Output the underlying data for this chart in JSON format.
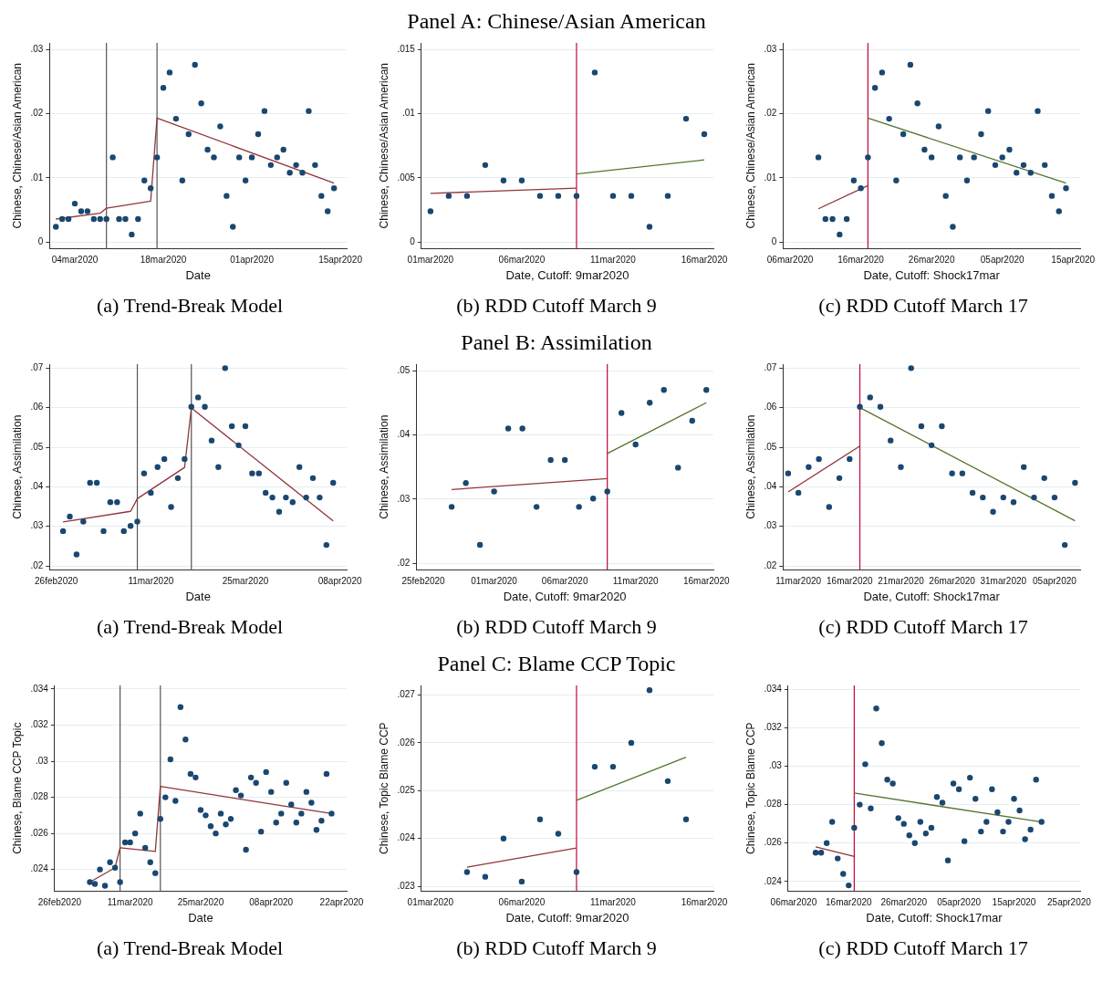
{
  "chart_data": [
    {
      "type": "scatter",
      "xlabel": "Date",
      "ylabel": "Chinese, Chinese/Asian American",
      "annotations": [
        "(a) Trend-Break Model"
      ],
      "grid": "y",
      "marker": "circle",
      "xlim": [
        "2020-02-29",
        "2020-04-16"
      ],
      "xticks": [
        {
          "value": "2020-03-04",
          "label": "04mar2020"
        },
        {
          "value": "2020-03-18",
          "label": "18mar2020"
        },
        {
          "value": "2020-04-01",
          "label": "01apr2020"
        },
        {
          "value": "2020-04-15",
          "label": "15apr2020"
        }
      ],
      "ylim": [
        -0.001,
        0.031
      ],
      "yticks": [
        {
          "value": 0,
          "label": "0"
        },
        {
          "value": 0.01,
          "label": ".01"
        },
        {
          "value": 0.02,
          "label": ".02"
        },
        {
          "value": 0.03,
          "label": ".03"
        }
      ],
      "ref_lines": [
        {
          "axis": "x",
          "value": "2020-03-09",
          "color": "#555555"
        },
        {
          "axis": "x",
          "value": "2020-03-17",
          "color": "#555555"
        }
      ],
      "series": [
        {
          "type": "scatter",
          "color": "#1a476f",
          "x": [
            "2020-03-01",
            "2020-03-02",
            "2020-03-03",
            "2020-03-04",
            "2020-03-05",
            "2020-03-06",
            "2020-03-07",
            "2020-03-08",
            "2020-03-09",
            "2020-03-10",
            "2020-03-11",
            "2020-03-12",
            "2020-03-13",
            "2020-03-14",
            "2020-03-15",
            "2020-03-16",
            "2020-03-17",
            "2020-03-18",
            "2020-03-19",
            "2020-03-20",
            "2020-03-21",
            "2020-03-22",
            "2020-03-23",
            "2020-03-24",
            "2020-03-25",
            "2020-03-26",
            "2020-03-27",
            "2020-03-28",
            "2020-03-29",
            "2020-03-30",
            "2020-03-31",
            "2020-04-01",
            "2020-04-02",
            "2020-04-03",
            "2020-04-04",
            "2020-04-05",
            "2020-04-06",
            "2020-04-07",
            "2020-04-08",
            "2020-04-09",
            "2020-04-10",
            "2020-04-11",
            "2020-04-12",
            "2020-04-13",
            "2020-04-14"
          ],
          "values": [
            0.0024,
            0.0036,
            0.0036,
            0.006,
            0.0048,
            0.0048,
            0.0036,
            0.0036,
            0.0036,
            0.0132,
            0.0036,
            0.0036,
            0.0012,
            0.0036,
            0.0096,
            0.0084,
            0.0132,
            0.024,
            0.0264,
            0.0192,
            0.0096,
            0.0168,
            0.0276,
            0.0216,
            0.0144,
            0.0132,
            0.018,
            0.0072,
            0.0024,
            0.0132,
            0.0096,
            0.0132,
            0.0168,
            0.0204,
            0.012,
            0.0132,
            0.0144,
            0.0108,
            0.012,
            0.0108,
            0.0204,
            0.012,
            0.0072,
            0.0048,
            0.0084
          ]
        },
        {
          "type": "line",
          "marker": "none",
          "color": "#90353b",
          "x": [
            "2020-03-01",
            "2020-03-08",
            "2020-03-09",
            "2020-03-16",
            "2020-03-17",
            "2020-04-14"
          ],
          "values": [
            0.0036,
            0.0045,
            0.0053,
            0.0064,
            0.0193,
            0.0092
          ]
        }
      ]
    },
    {
      "type": "scatter",
      "title": "Panel A: Chinese/Asian American",
      "xlabel": "Date, Cutoff: 9mar2020",
      "ylabel": "Chinese, Chinese/Asian American",
      "annotations": [
        "(b) RDD Cutoff March 9"
      ],
      "grid": "y",
      "marker": "circle",
      "xlim": [
        "2020-02-29T12:00",
        "2020-03-16T12:00"
      ],
      "xticks": [
        {
          "value": "2020-03-01",
          "label": "01mar2020"
        },
        {
          "value": "2020-03-06",
          "label": "06mar2020"
        },
        {
          "value": "2020-03-11",
          "label": "11mar2020"
        },
        {
          "value": "2020-03-16",
          "label": "16mar2020"
        }
      ],
      "ylim": [
        -0.0005,
        0.0155
      ],
      "yticks": [
        {
          "value": 0,
          "label": "0"
        },
        {
          "value": 0.005,
          "label": ".005"
        },
        {
          "value": 0.01,
          "label": ".01"
        },
        {
          "value": 0.015,
          "label": ".015"
        }
      ],
      "ref_lines": [
        {
          "axis": "x",
          "value": "2020-03-09",
          "color": "#c10534"
        }
      ],
      "series": [
        {
          "type": "scatter",
          "color": "#1a476f",
          "x": [
            "2020-03-01",
            "2020-03-02",
            "2020-03-03",
            "2020-03-04",
            "2020-03-05",
            "2020-03-06",
            "2020-03-07",
            "2020-03-08",
            "2020-03-09",
            "2020-03-10",
            "2020-03-11",
            "2020-03-12",
            "2020-03-13",
            "2020-03-14",
            "2020-03-15",
            "2020-03-16"
          ],
          "values": [
            0.0024,
            0.0036,
            0.0036,
            0.006,
            0.0048,
            0.0048,
            0.0036,
            0.0036,
            0.0036,
            0.0132,
            0.0036,
            0.0036,
            0.0012,
            0.0036,
            0.0096,
            0.0084
          ]
        },
        {
          "type": "line",
          "marker": "none",
          "color": "#90353b",
          "x": [
            "2020-03-01",
            "2020-03-09"
          ],
          "values": [
            0.0038,
            0.0042
          ]
        },
        {
          "type": "line",
          "marker": "none",
          "color": "#55752f",
          "x": [
            "2020-03-09",
            "2020-03-16"
          ],
          "values": [
            0.0053,
            0.0064
          ]
        }
      ]
    },
    {
      "type": "scatter",
      "xlabel": "Date, Cutoff: Shock17mar",
      "ylabel": "Chinese, Chinese/Asian American",
      "annotations": [
        "(c) RDD Cutoff March 17"
      ],
      "grid": "y",
      "marker": "circle",
      "xlim": [
        "2020-03-05",
        "2020-04-16"
      ],
      "xticks": [
        {
          "value": "2020-03-06",
          "label": "06mar2020"
        },
        {
          "value": "2020-03-16",
          "label": "16mar2020"
        },
        {
          "value": "2020-03-26",
          "label": "26mar2020"
        },
        {
          "value": "2020-04-05",
          "label": "05apr2020"
        },
        {
          "value": "2020-04-15",
          "label": "15apr2020"
        }
      ],
      "ylim": [
        -0.001,
        0.031
      ],
      "yticks": [
        {
          "value": 0,
          "label": "0"
        },
        {
          "value": 0.01,
          "label": ".01"
        },
        {
          "value": 0.02,
          "label": ".02"
        },
        {
          "value": 0.03,
          "label": ".03"
        }
      ],
      "ref_lines": [
        {
          "axis": "x",
          "value": "2020-03-17",
          "color": "#c10534"
        }
      ],
      "series": [
        {
          "type": "scatter",
          "color": "#1a476f",
          "x": [
            "2020-03-10",
            "2020-03-11",
            "2020-03-12",
            "2020-03-13",
            "2020-03-14",
            "2020-03-15",
            "2020-03-16",
            "2020-03-17",
            "2020-03-18",
            "2020-03-19",
            "2020-03-20",
            "2020-03-21",
            "2020-03-22",
            "2020-03-23",
            "2020-03-24",
            "2020-03-25",
            "2020-03-26",
            "2020-03-27",
            "2020-03-28",
            "2020-03-29",
            "2020-03-30",
            "2020-03-31",
            "2020-04-01",
            "2020-04-02",
            "2020-04-03",
            "2020-04-04",
            "2020-04-05",
            "2020-04-06",
            "2020-04-07",
            "2020-04-08",
            "2020-04-09",
            "2020-04-10",
            "2020-04-11",
            "2020-04-12",
            "2020-04-13",
            "2020-04-14"
          ],
          "values": [
            0.0132,
            0.0036,
            0.0036,
            0.0012,
            0.0036,
            0.0096,
            0.0084,
            0.0132,
            0.024,
            0.0264,
            0.0192,
            0.0096,
            0.0168,
            0.0276,
            0.0216,
            0.0144,
            0.0132,
            0.018,
            0.0072,
            0.0024,
            0.0132,
            0.0096,
            0.0132,
            0.0168,
            0.0204,
            0.012,
            0.0132,
            0.0144,
            0.0108,
            0.012,
            0.0108,
            0.0204,
            0.012,
            0.0072,
            0.0048,
            0.0084
          ]
        },
        {
          "type": "line",
          "marker": "none",
          "color": "#90353b",
          "x": [
            "2020-03-10",
            "2020-03-17"
          ],
          "values": [
            0.0052,
            0.0088
          ]
        },
        {
          "type": "line",
          "marker": "none",
          "color": "#55752f",
          "x": [
            "2020-03-17",
            "2020-04-14"
          ],
          "values": [
            0.0193,
            0.0092
          ]
        }
      ]
    },
    {
      "type": "scatter",
      "xlabel": "Date",
      "ylabel": "Chinese, Assimilation",
      "annotations": [
        "(a) Trend-Break Model"
      ],
      "grid": "y",
      "marker": "circle",
      "xlim": [
        "2020-02-25",
        "2020-04-09"
      ],
      "xticks": [
        {
          "value": "2020-02-26",
          "label": "26feb2020"
        },
        {
          "value": "2020-03-11",
          "label": "11mar2020"
        },
        {
          "value": "2020-03-25",
          "label": "25mar2020"
        },
        {
          "value": "2020-04-08",
          "label": "08apr2020"
        }
      ],
      "ylim": [
        0.019,
        0.071
      ],
      "yticks": [
        {
          "value": 0.02,
          "label": ".02"
        },
        {
          "value": 0.03,
          "label": ".03"
        },
        {
          "value": 0.04,
          "label": ".04"
        },
        {
          "value": 0.05,
          "label": ".05"
        },
        {
          "value": 0.06,
          "label": ".06"
        },
        {
          "value": 0.07,
          "label": ".07"
        }
      ],
      "ref_lines": [
        {
          "axis": "x",
          "value": "2020-03-09",
          "color": "#555555"
        },
        {
          "axis": "x",
          "value": "2020-03-17",
          "color": "#555555"
        }
      ],
      "series": [
        {
          "type": "scatter",
          "color": "#1a476f",
          "x": [
            "2020-02-27",
            "2020-02-28",
            "2020-02-29",
            "2020-03-01",
            "2020-03-02",
            "2020-03-03",
            "2020-03-04",
            "2020-03-05",
            "2020-03-06",
            "2020-03-07",
            "2020-03-08",
            "2020-03-09",
            "2020-03-10",
            "2020-03-11",
            "2020-03-12",
            "2020-03-13",
            "2020-03-14",
            "2020-03-15",
            "2020-03-16",
            "2020-03-17",
            "2020-03-18",
            "2020-03-19",
            "2020-03-20",
            "2020-03-21",
            "2020-03-22",
            "2020-03-23",
            "2020-03-24",
            "2020-03-25",
            "2020-03-26",
            "2020-03-27",
            "2020-03-28",
            "2020-03-29",
            "2020-03-30",
            "2020-03-31",
            "2020-04-01",
            "2020-04-02",
            "2020-04-03",
            "2020-04-04",
            "2020-04-05",
            "2020-04-06",
            "2020-04-07"
          ],
          "values": [
            0.0288,
            0.0325,
            0.0229,
            0.0312,
            0.041,
            0.041,
            0.0288,
            0.0361,
            0.0361,
            0.0288,
            0.0301,
            0.0312,
            0.0434,
            0.0385,
            0.045,
            0.047,
            0.0349,
            0.0422,
            0.047,
            0.0602,
            0.0626,
            0.0602,
            0.0517,
            0.045,
            0.07,
            0.0553,
            0.0505,
            0.0553,
            0.0434,
            0.0434,
            0.0385,
            0.0373,
            0.0337,
            0.0373,
            0.0361,
            0.045,
            0.0373,
            0.0422,
            0.0373,
            0.0253,
            0.041
          ]
        },
        {
          "type": "line",
          "marker": "none",
          "color": "#90353b",
          "x": [
            "2020-02-27",
            "2020-03-08",
            "2020-03-09",
            "2020-03-16",
            "2020-03-17",
            "2020-04-07"
          ],
          "values": [
            0.0311,
            0.0338,
            0.037,
            0.0449,
            0.0599,
            0.0314
          ]
        }
      ]
    },
    {
      "type": "scatter",
      "title": "Panel B: Assimilation",
      "xlabel": "Date, Cutoff: 9mar2020",
      "ylabel": "Chinese, Assimilation",
      "annotations": [
        "(b) RDD Cutoff March 9"
      ],
      "grid": "y",
      "marker": "circle",
      "xlim": [
        "2020-02-24T12:00",
        "2020-03-16T12:00"
      ],
      "xticks": [
        {
          "value": "2020-02-25",
          "label": "25feb2020"
        },
        {
          "value": "2020-03-01",
          "label": "01mar2020"
        },
        {
          "value": "2020-03-06",
          "label": "06mar2020"
        },
        {
          "value": "2020-03-11",
          "label": "11mar2020"
        },
        {
          "value": "2020-03-16",
          "label": "16mar2020"
        }
      ],
      "ylim": [
        0.019,
        0.051
      ],
      "yticks": [
        {
          "value": 0.02,
          "label": ".02"
        },
        {
          "value": 0.03,
          "label": ".03"
        },
        {
          "value": 0.04,
          "label": ".04"
        },
        {
          "value": 0.05,
          "label": ".05"
        }
      ],
      "ref_lines": [
        {
          "axis": "x",
          "value": "2020-03-09",
          "color": "#c10534"
        }
      ],
      "series": [
        {
          "type": "scatter",
          "color": "#1a476f",
          "x": [
            "2020-02-27",
            "2020-02-28",
            "2020-02-29",
            "2020-03-01",
            "2020-03-02",
            "2020-03-03",
            "2020-03-04",
            "2020-03-05",
            "2020-03-06",
            "2020-03-07",
            "2020-03-08",
            "2020-03-09",
            "2020-03-10",
            "2020-03-11",
            "2020-03-12",
            "2020-03-13",
            "2020-03-14",
            "2020-03-15",
            "2020-03-16"
          ],
          "values": [
            0.0288,
            0.0325,
            0.0229,
            0.0312,
            0.041,
            0.041,
            0.0288,
            0.0361,
            0.0361,
            0.0288,
            0.0301,
            0.0312,
            0.0434,
            0.0385,
            0.045,
            0.047,
            0.0349,
            0.0422,
            0.047
          ]
        },
        {
          "type": "line",
          "marker": "none",
          "color": "#90353b",
          "x": [
            "2020-02-27",
            "2020-03-09"
          ],
          "values": [
            0.0315,
            0.0332
          ]
        },
        {
          "type": "line",
          "marker": "none",
          "color": "#55752f",
          "x": [
            "2020-03-09",
            "2020-03-16"
          ],
          "values": [
            0.0371,
            0.045
          ]
        }
      ]
    },
    {
      "type": "scatter",
      "xlabel": "Date, Cutoff: Shock17mar",
      "ylabel": "Chinese, Assimilation",
      "annotations": [
        "(c) RDD Cutoff March 17"
      ],
      "grid": "y",
      "marker": "circle",
      "xlim": [
        "2020-03-09T12:00",
        "2020-04-07T12:00"
      ],
      "xticks": [
        {
          "value": "2020-03-11",
          "label": "11mar2020"
        },
        {
          "value": "2020-03-16",
          "label": "16mar2020"
        },
        {
          "value": "2020-03-21",
          "label": "21mar2020"
        },
        {
          "value": "2020-03-26",
          "label": "26mar2020"
        },
        {
          "value": "2020-03-31",
          "label": "31mar2020"
        },
        {
          "value": "2020-04-05",
          "label": "05apr2020"
        }
      ],
      "ylim": [
        0.019,
        0.071
      ],
      "yticks": [
        {
          "value": 0.02,
          "label": ".02"
        },
        {
          "value": 0.03,
          "label": ".03"
        },
        {
          "value": 0.04,
          "label": ".04"
        },
        {
          "value": 0.05,
          "label": ".05"
        },
        {
          "value": 0.06,
          "label": ".06"
        },
        {
          "value": 0.07,
          "label": ".07"
        }
      ],
      "ref_lines": [
        {
          "axis": "x",
          "value": "2020-03-17",
          "color": "#c10534"
        }
      ],
      "series": [
        {
          "type": "scatter",
          "color": "#1a476f",
          "x": [
            "2020-03-10",
            "2020-03-11",
            "2020-03-12",
            "2020-03-13",
            "2020-03-14",
            "2020-03-15",
            "2020-03-16",
            "2020-03-17",
            "2020-03-18",
            "2020-03-19",
            "2020-03-20",
            "2020-03-21",
            "2020-03-22",
            "2020-03-23",
            "2020-03-24",
            "2020-03-25",
            "2020-03-26",
            "2020-03-27",
            "2020-03-28",
            "2020-03-29",
            "2020-03-30",
            "2020-03-31",
            "2020-04-01",
            "2020-04-02",
            "2020-04-03",
            "2020-04-04",
            "2020-04-05",
            "2020-04-06",
            "2020-04-07"
          ],
          "values": [
            0.0434,
            0.0385,
            0.045,
            0.047,
            0.0349,
            0.0422,
            0.047,
            0.0602,
            0.0626,
            0.0602,
            0.0517,
            0.045,
            0.07,
            0.0553,
            0.0505,
            0.0553,
            0.0434,
            0.0434,
            0.0385,
            0.0373,
            0.0337,
            0.0373,
            0.0361,
            0.045,
            0.0373,
            0.0422,
            0.0373,
            0.0253,
            0.041
          ]
        },
        {
          "type": "line",
          "marker": "none",
          "color": "#90353b",
          "x": [
            "2020-03-10",
            "2020-03-17"
          ],
          "values": [
            0.0387,
            0.0503
          ]
        },
        {
          "type": "line",
          "marker": "none",
          "color": "#55752f",
          "x": [
            "2020-03-17",
            "2020-04-07"
          ],
          "values": [
            0.06,
            0.0314
          ]
        }
      ]
    },
    {
      "type": "scatter",
      "xlabel": "Date",
      "ylabel": "Chinese, Blame CCP Topic",
      "annotations": [
        "(a) Trend-Break Model"
      ],
      "grid": "y",
      "marker": "circle",
      "xlim": [
        "2020-02-25",
        "2020-04-23"
      ],
      "xticks": [
        {
          "value": "2020-02-26",
          "label": "26feb2020"
        },
        {
          "value": "2020-03-11",
          "label": "11mar2020"
        },
        {
          "value": "2020-03-25",
          "label": "25mar2020"
        },
        {
          "value": "2020-04-08",
          "label": "08apr2020"
        },
        {
          "value": "2020-04-22",
          "label": "22apr2020"
        }
      ],
      "ylim": [
        0.0228,
        0.0342
      ],
      "yticks": [
        {
          "value": 0.024,
          "label": ".024"
        },
        {
          "value": 0.026,
          "label": ".026"
        },
        {
          "value": 0.028,
          "label": ".028"
        },
        {
          "value": 0.03,
          "label": ".03"
        },
        {
          "value": 0.032,
          "label": ".032"
        },
        {
          "value": 0.034,
          "label": ".034"
        }
      ],
      "ref_lines": [
        {
          "axis": "x",
          "value": "2020-03-09",
          "color": "#555555"
        },
        {
          "axis": "x",
          "value": "2020-03-17",
          "color": "#555555"
        }
      ],
      "series": [
        {
          "type": "scatter",
          "color": "#1a476f",
          "x": [
            "2020-03-03",
            "2020-03-04",
            "2020-03-05",
            "2020-03-06",
            "2020-03-07",
            "2020-03-08",
            "2020-03-09",
            "2020-03-10",
            "2020-03-11",
            "2020-03-12",
            "2020-03-13",
            "2020-03-14",
            "2020-03-15",
            "2020-03-16",
            "2020-03-17",
            "2020-03-18",
            "2020-03-19",
            "2020-03-20",
            "2020-03-21",
            "2020-03-22",
            "2020-03-23",
            "2020-03-24",
            "2020-03-25",
            "2020-03-26",
            "2020-03-27",
            "2020-03-28",
            "2020-03-29",
            "2020-03-30",
            "2020-03-31",
            "2020-04-01",
            "2020-04-02",
            "2020-04-03",
            "2020-04-04",
            "2020-04-05",
            "2020-04-06",
            "2020-04-07",
            "2020-04-08",
            "2020-04-09",
            "2020-04-10",
            "2020-04-11",
            "2020-04-12",
            "2020-04-13",
            "2020-04-14",
            "2020-04-15",
            "2020-04-16",
            "2020-04-17",
            "2020-04-18",
            "2020-04-19",
            "2020-04-20"
          ],
          "values": [
            0.0233,
            0.0232,
            0.024,
            0.0231,
            0.0244,
            0.0241,
            0.0233,
            0.0255,
            0.0255,
            0.026,
            0.0271,
            0.0252,
            0.0244,
            0.0238,
            0.0268,
            0.028,
            0.0301,
            0.0278,
            0.033,
            0.0312,
            0.0293,
            0.0291,
            0.0273,
            0.027,
            0.0264,
            0.026,
            0.0271,
            0.0265,
            0.0268,
            0.0284,
            0.0281,
            0.0251,
            0.0291,
            0.0288,
            0.0261,
            0.0294,
            0.0283,
            0.0266,
            0.0271,
            0.0288,
            0.0276,
            0.0266,
            0.0271,
            0.0283,
            0.0277,
            0.0262,
            0.0267,
            0.0293,
            0.0271
          ]
        },
        {
          "type": "line",
          "marker": "none",
          "color": "#90353b",
          "x": [
            "2020-03-03",
            "2020-03-08",
            "2020-03-09",
            "2020-03-16",
            "2020-03-17",
            "2020-04-20"
          ],
          "values": [
            0.0233,
            0.0241,
            0.0252,
            0.025,
            0.0286,
            0.0271
          ]
        }
      ]
    },
    {
      "type": "scatter",
      "title": "Panel C: Blame CCP Topic",
      "xlabel": "Date, Cutoff: 9mar2020",
      "ylabel": "Chinese, Topic Blame CCP",
      "annotations": [
        "(b) RDD Cutoff March 9"
      ],
      "grid": "y",
      "marker": "circle",
      "xlim": [
        "2020-02-29T12:00",
        "2020-03-16T12:00"
      ],
      "xticks": [
        {
          "value": "2020-03-01",
          "label": "01mar2020"
        },
        {
          "value": "2020-03-06",
          "label": "06mar2020"
        },
        {
          "value": "2020-03-11",
          "label": "11mar2020"
        },
        {
          "value": "2020-03-16",
          "label": "16mar2020"
        }
      ],
      "ylim": [
        0.0229,
        0.0272
      ],
      "yticks": [
        {
          "value": 0.023,
          "label": ".023"
        },
        {
          "value": 0.024,
          "label": ".024"
        },
        {
          "value": 0.025,
          "label": ".025"
        },
        {
          "value": 0.026,
          "label": ".026"
        },
        {
          "value": 0.027,
          "label": ".027"
        }
      ],
      "ref_lines": [
        {
          "axis": "x",
          "value": "2020-03-09",
          "color": "#c10534"
        }
      ],
      "series": [
        {
          "type": "scatter",
          "color": "#1a476f",
          "x": [
            "2020-03-03",
            "2020-03-04",
            "2020-03-05",
            "2020-03-06",
            "2020-03-07",
            "2020-03-08",
            "2020-03-09",
            "2020-03-10",
            "2020-03-11",
            "2020-03-12",
            "2020-03-13",
            "2020-03-14",
            "2020-03-15"
          ],
          "values": [
            0.0233,
            0.0232,
            0.024,
            0.0231,
            0.0244,
            0.0241,
            0.0233,
            0.0255,
            0.0255,
            0.026,
            0.0271,
            0.0252,
            0.0244
          ]
        },
        {
          "type": "line",
          "marker": "none",
          "color": "#90353b",
          "x": [
            "2020-03-03",
            "2020-03-09"
          ],
          "values": [
            0.0234,
            0.0238
          ]
        },
        {
          "type": "line",
          "marker": "none",
          "color": "#55752f",
          "x": [
            "2020-03-09",
            "2020-03-15"
          ],
          "values": [
            0.0248,
            0.0257
          ]
        }
      ]
    },
    {
      "type": "scatter",
      "xlabel": "Date, Cutoff: Shock17mar",
      "ylabel": "Chinese, Topic Blame CCP",
      "annotations": [
        "(c) RDD Cutoff March 17"
      ],
      "grid": "y",
      "marker": "circle",
      "xlim": [
        "2020-03-05",
        "2020-04-27"
      ],
      "xticks": [
        {
          "value": "2020-03-06",
          "label": "06mar2020"
        },
        {
          "value": "2020-03-16",
          "label": "16mar2020"
        },
        {
          "value": "2020-03-26",
          "label": "26mar2020"
        },
        {
          "value": "2020-04-05",
          "label": "05apr2020"
        },
        {
          "value": "2020-04-15",
          "label": "15apr2020"
        },
        {
          "value": "2020-04-25",
          "label": "25apr2020"
        }
      ],
      "ylim": [
        0.0235,
        0.0342
      ],
      "yticks": [
        {
          "value": 0.024,
          "label": ".024"
        },
        {
          "value": 0.026,
          "label": ".026"
        },
        {
          "value": 0.028,
          "label": ".028"
        },
        {
          "value": 0.03,
          "label": ".03"
        },
        {
          "value": 0.032,
          "label": ".032"
        },
        {
          "value": 0.034,
          "label": ".034"
        }
      ],
      "ref_lines": [
        {
          "axis": "x",
          "value": "2020-03-17",
          "color": "#c10534"
        }
      ],
      "series": [
        {
          "type": "scatter",
          "color": "#1a476f",
          "x": [
            "2020-03-10",
            "2020-03-11",
            "2020-03-12",
            "2020-03-13",
            "2020-03-14",
            "2020-03-15",
            "2020-03-16",
            "2020-03-17",
            "2020-03-18",
            "2020-03-19",
            "2020-03-20",
            "2020-03-21",
            "2020-03-22",
            "2020-03-23",
            "2020-03-24",
            "2020-03-25",
            "2020-03-26",
            "2020-03-27",
            "2020-03-28",
            "2020-03-29",
            "2020-03-30",
            "2020-03-31",
            "2020-04-01",
            "2020-04-02",
            "2020-04-03",
            "2020-04-04",
            "2020-04-05",
            "2020-04-06",
            "2020-04-07",
            "2020-04-08",
            "2020-04-09",
            "2020-04-10",
            "2020-04-11",
            "2020-04-12",
            "2020-04-13",
            "2020-04-14",
            "2020-04-15",
            "2020-04-16",
            "2020-04-17",
            "2020-04-18",
            "2020-04-19",
            "2020-04-20"
          ],
          "values": [
            0.0255,
            0.0255,
            0.026,
            0.0271,
            0.0252,
            0.0244,
            0.0238,
            0.0268,
            0.028,
            0.0301,
            0.0278,
            0.033,
            0.0312,
            0.0293,
            0.0291,
            0.0273,
            0.027,
            0.0264,
            0.026,
            0.0271,
            0.0265,
            0.0268,
            0.0284,
            0.0281,
            0.0251,
            0.0291,
            0.0288,
            0.0261,
            0.0294,
            0.0283,
            0.0266,
            0.0271,
            0.0288,
            0.0276,
            0.0266,
            0.0271,
            0.0283,
            0.0277,
            0.0262,
            0.0267,
            0.0293,
            0.0271
          ]
        },
        {
          "type": "line",
          "marker": "none",
          "color": "#90353b",
          "x": [
            "2020-03-10",
            "2020-03-17"
          ],
          "values": [
            0.0258,
            0.0253
          ]
        },
        {
          "type": "line",
          "marker": "none",
          "color": "#55752f",
          "x": [
            "2020-03-17",
            "2020-04-20"
          ],
          "values": [
            0.0286,
            0.0271
          ]
        }
      ]
    }
  ]
}
